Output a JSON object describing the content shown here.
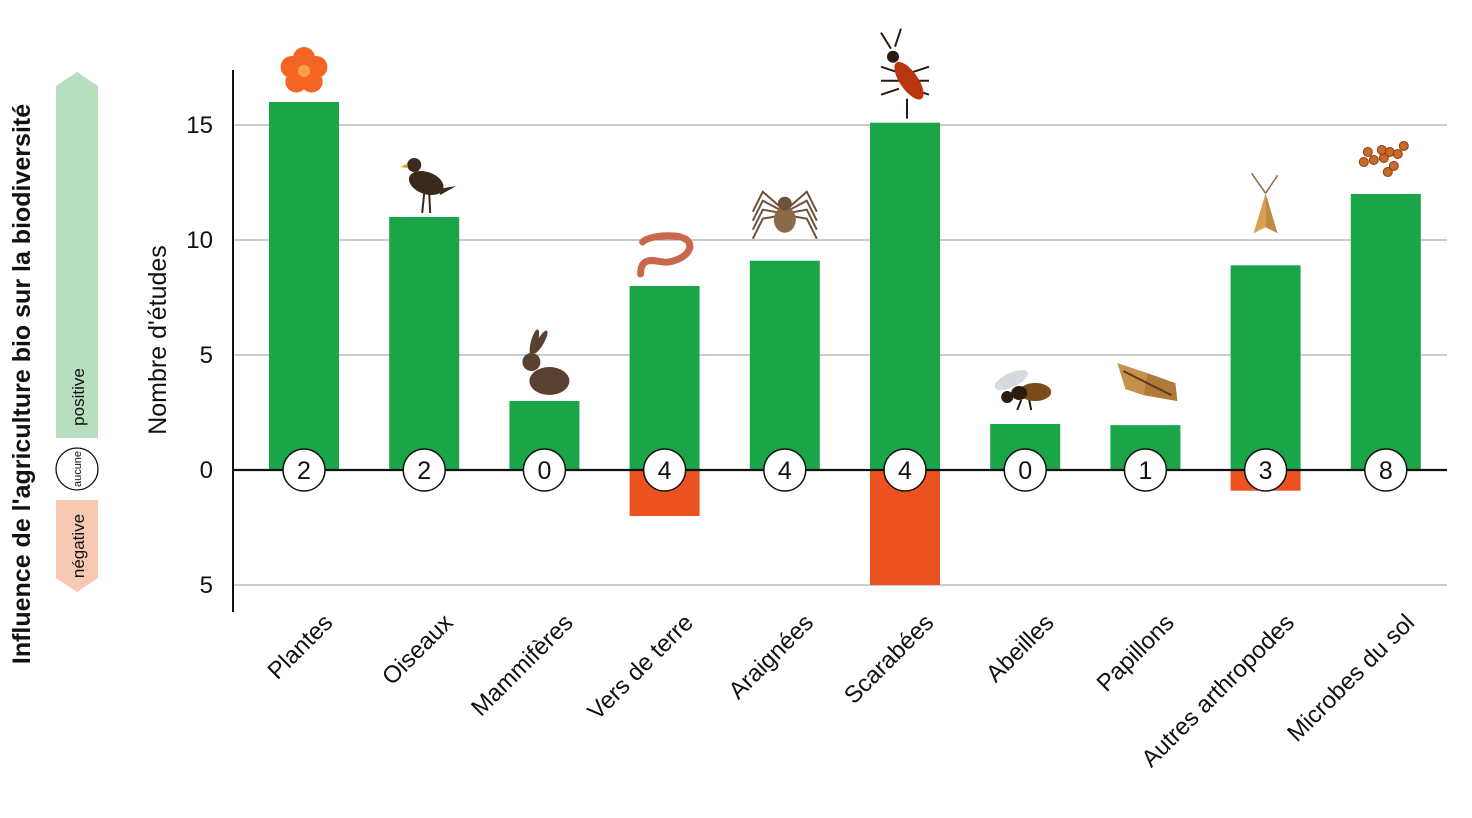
{
  "colors": {
    "positive": "#1aa548",
    "negative": "#ec5120",
    "positive_light": "#b7dfbf",
    "negative_light": "#f7c9b3",
    "grid": "#999999",
    "axis": "#111111"
  },
  "legend": {
    "title": "Influence de l'agriculture bio sur la biodiversité",
    "positive": "positive",
    "none": "aucune",
    "negative": "négative"
  },
  "chart_data": {
    "type": "bar",
    "ylabel": "Nombre d'études",
    "ylim": [
      -5,
      17.5
    ],
    "yticks": [
      {
        "value": 15,
        "label": "15"
      },
      {
        "value": 10,
        "label": "10"
      },
      {
        "value": 5,
        "label": "5"
      },
      {
        "value": 0,
        "label": "0"
      },
      {
        "value": -5,
        "label": "5"
      }
    ],
    "categories": [
      "Plantes",
      "Oiseaux",
      "Mammifères",
      "Vers de terre",
      "Araignées",
      "Scarabées",
      "Abeilles",
      "Papillons",
      "Autres arthropodes",
      "Microbes du sol"
    ],
    "icons": [
      "flower-icon",
      "bird-icon",
      "hare-icon",
      "worm-icon",
      "spider-icon",
      "beetle-icon",
      "bee-icon",
      "butterfly-icon",
      "moth-icon",
      "microbes-icon"
    ],
    "series": [
      {
        "name": "positive",
        "values": [
          16,
          11,
          3,
          8,
          9.1,
          15.1,
          2,
          1.95,
          8.9,
          12
        ]
      },
      {
        "name": "aucune",
        "values": [
          2,
          2,
          0,
          4,
          4,
          4,
          0,
          1,
          3,
          8
        ]
      },
      {
        "name": "négative",
        "values": [
          0,
          0,
          0,
          2,
          0,
          5,
          0,
          0,
          0.9,
          0
        ]
      }
    ],
    "grid": true
  }
}
